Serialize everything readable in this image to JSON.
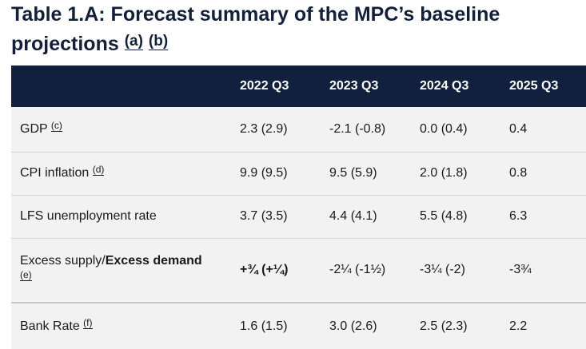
{
  "title": {
    "line1": "Table 1.A: Forecast summary of the MPC’s baseline",
    "line2": "projections",
    "notes": [
      "(a)",
      "(b)"
    ]
  },
  "table": {
    "headers": [
      "",
      "2022 Q3",
      "2023 Q3",
      "2024 Q3",
      "2025 Q3"
    ],
    "rows": [
      {
        "label": "GDP",
        "note": "(c)",
        "values": [
          "2.3 (2.9)",
          "-2.1 (-0.8)",
          "0.0 (0.4)",
          "0.4"
        ]
      },
      {
        "label": "CPI inflation",
        "note": "(d)",
        "values": [
          "9.9 (9.5)",
          "9.5 (5.9)",
          "2.0 (1.8)",
          "0.8"
        ]
      },
      {
        "label": "LFS unemployment rate",
        "note": "",
        "values": [
          "3.7 (3.5)",
          "4.4 (4.1)",
          "5.5 (4.8)",
          "6.3"
        ]
      },
      {
        "label": "Excess supply/",
        "label_bold": "Excess demand",
        "note": "(e)",
        "values": [
          "+¾ (+¼)",
          "-2¼ (-1½)",
          "-3¼ (-2)",
          "-3¾"
        ]
      },
      {
        "label": "Bank Rate",
        "note": "(f)",
        "values": [
          "1.6 (1.5)",
          "3.0 (2.6)",
          "2.5 (2.3)",
          "2.2"
        ]
      }
    ]
  }
}
